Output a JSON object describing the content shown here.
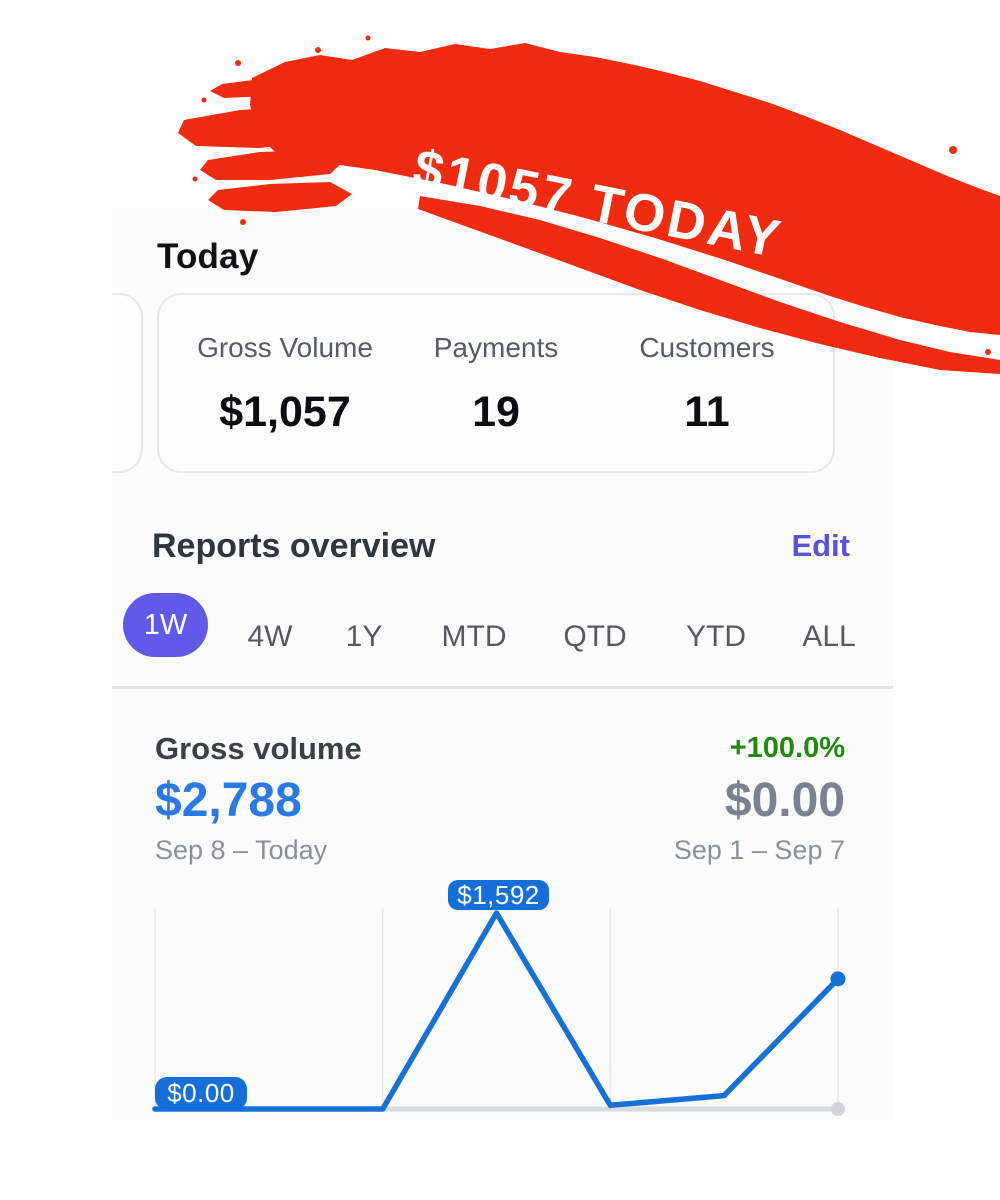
{
  "overlay": {
    "banner_text": "$1057 TODAY",
    "brush_color": "#f12b10"
  },
  "today_section": {
    "title": "Today",
    "stats": [
      {
        "label": "Gross Volume",
        "value": "$1,057"
      },
      {
        "label": "Payments",
        "value": "19"
      },
      {
        "label": "Customers",
        "value": "11"
      }
    ]
  },
  "reports": {
    "title": "Reports overview",
    "edit_label": "Edit",
    "selected_tab": "1W",
    "tabs": [
      {
        "label": "1W"
      },
      {
        "label": "4W"
      },
      {
        "label": "1Y"
      },
      {
        "label": "MTD"
      },
      {
        "label": "QTD"
      },
      {
        "label": "YTD"
      },
      {
        "label": "ALL"
      }
    ]
  },
  "gross_volume": {
    "title": "Gross volume",
    "change": "+100.0%",
    "current_total": "$2,788",
    "previous_total": "$0.00",
    "current_range": "Sep 8 – Today",
    "previous_range": "Sep 1 – Sep 7",
    "peak_tooltip": "$1,592",
    "start_tooltip": "$0.00"
  },
  "chart_data": {
    "type": "line",
    "title": "Gross volume",
    "x_count": 7,
    "series": [
      {
        "name": "Sep 8 – Today",
        "color": "#1571d6",
        "values": [
          0,
          0,
          0,
          1592,
          30,
          109,
          1057
        ]
      },
      {
        "name": "Sep 1 – Sep 7",
        "color": "#d8dbe0",
        "values": [
          0,
          0,
          0,
          0,
          0,
          0,
          0
        ]
      }
    ],
    "ylim": [
      0,
      1592
    ],
    "annotations": [
      {
        "label": "$1,592",
        "point_index": 3
      },
      {
        "label": "$0.00",
        "point_index": 0
      }
    ],
    "grid": "vertical",
    "legend": false
  },
  "colors": {
    "accent_purple": "#615ae9",
    "link_purple": "#5a50e2",
    "chart_blue": "#1571d6",
    "amount_blue": "#2b79e4",
    "positive_green": "#1f8a0c",
    "banner_red": "#f12b10"
  }
}
